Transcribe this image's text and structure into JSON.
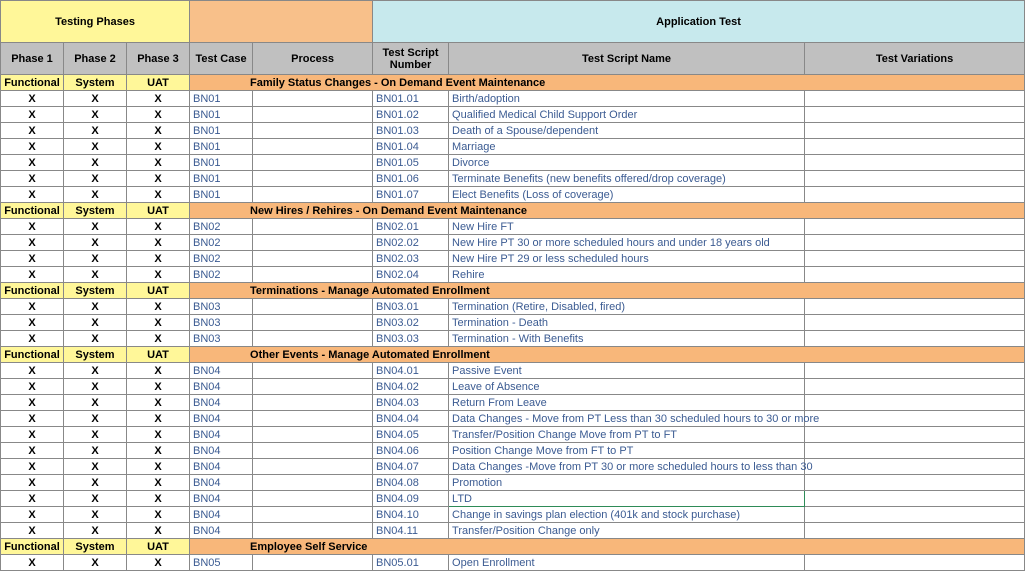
{
  "topHeaders": {
    "testingPhases": "Testing Phases",
    "blank": "",
    "applicationTest": "Application Test"
  },
  "colHeaders": {
    "phase1": "Phase 1",
    "phase2": "Phase 2",
    "phase3": "Phase 3",
    "testCase": "Test Case",
    "process": "Process",
    "testScriptNumber": "Test Script Number",
    "testScriptName": "Test Script Name",
    "testVariations": "Test Variations"
  },
  "phaseLabels": {
    "functional": "Functional",
    "system": "System",
    "uat": "UAT"
  },
  "colors": {
    "yellow": "#fff799",
    "peach": "#f8c08a",
    "cyan": "#c7e9ed",
    "grey": "#c0c0c0",
    "sectionOrange": "#f8b77a",
    "linkBlue": "#3b5b92",
    "greenBorder": "#2e8b57"
  },
  "sections": [
    {
      "title": "Family Status Changes - On Demand Event Maintenance",
      "rows": [
        {
          "tc": "BN01",
          "tsn": "BN01.01",
          "name": "Birth/adoption"
        },
        {
          "tc": "BN01",
          "tsn": "BN01.02",
          "name": "Qualified Medical Child Support Order"
        },
        {
          "tc": "BN01",
          "tsn": "BN01.03",
          "name": "Death of a Spouse/dependent"
        },
        {
          "tc": "BN01",
          "tsn": "BN01.04",
          "name": "Marriage"
        },
        {
          "tc": "BN01",
          "tsn": "BN01.05",
          "name": "Divorce"
        },
        {
          "tc": "BN01",
          "tsn": "BN01.06",
          "name": "Terminate Benefits (new benefits offered/drop coverage)"
        },
        {
          "tc": "BN01",
          "tsn": "BN01.07",
          "name": "Elect Benefits (Loss of coverage)"
        }
      ]
    },
    {
      "title": "New Hires / Rehires - On Demand Event Maintenance",
      "rows": [
        {
          "tc": "BN02",
          "tsn": "BN02.01",
          "name": "New Hire FT"
        },
        {
          "tc": "BN02",
          "tsn": "BN02.02",
          "name": "New Hire PT 30 or more scheduled hours and under 18 years old"
        },
        {
          "tc": "BN02",
          "tsn": "BN02.03",
          "name": "New Hire PT 29 or less scheduled hours"
        },
        {
          "tc": "BN02",
          "tsn": "BN02.04",
          "name": "Rehire"
        }
      ]
    },
    {
      "title": "Terminations - Manage Automated Enrollment",
      "rows": [
        {
          "tc": "BN03",
          "tsn": "BN03.01",
          "name": "Termination (Retire, Disabled, fired)"
        },
        {
          "tc": "BN03",
          "tsn": "BN03.02",
          "name": "Termination - Death"
        },
        {
          "tc": "BN03",
          "tsn": "BN03.03",
          "name": "Termination - With Benefits"
        }
      ]
    },
    {
      "title": "Other Events - Manage Automated Enrollment",
      "rows": [
        {
          "tc": "BN04",
          "tsn": "BN04.01",
          "name": "Passive Event"
        },
        {
          "tc": "BN04",
          "tsn": "BN04.02",
          "name": "Leave of Absence"
        },
        {
          "tc": "BN04",
          "tsn": "BN04.03",
          "name": "Return From Leave"
        },
        {
          "tc": "BN04",
          "tsn": "BN04.04",
          "name": "Data Changes - Move from PT Less than 30 scheduled hours to 30 or more"
        },
        {
          "tc": "BN04",
          "tsn": "BN04.05",
          "name": "Transfer/Position Change Move from PT to FT"
        },
        {
          "tc": "BN04",
          "tsn": "BN04.06",
          "name": "Position Change Move from FT to PT"
        },
        {
          "tc": "BN04",
          "tsn": "BN04.07",
          "name": "Data Changes -Move from PT 30 or more scheduled hours to less than 30"
        },
        {
          "tc": "BN04",
          "tsn": "BN04.08",
          "name": "Promotion"
        },
        {
          "tc": "BN04",
          "tsn": "BN04.09",
          "name": "LTD",
          "highlight": true
        },
        {
          "tc": "BN04",
          "tsn": "BN04.10",
          "name": "Change in savings plan election (401k and stock purchase)"
        },
        {
          "tc": "BN04",
          "tsn": "BN04.11",
          "name": "Transfer/Position Change only"
        }
      ]
    },
    {
      "title": "Employee Self Service",
      "rows": [
        {
          "tc": "BN05",
          "tsn": "BN05.01",
          "name": "Open Enrollment"
        }
      ]
    }
  ]
}
